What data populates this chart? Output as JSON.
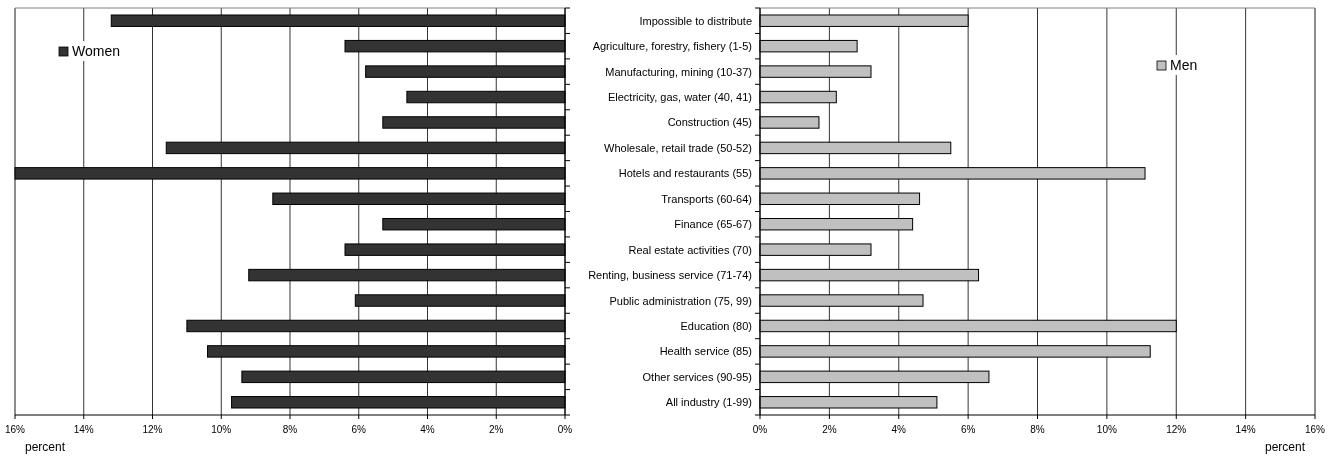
{
  "chart_data": [
    {
      "type": "bar",
      "orientation": "horizontal",
      "xlabel": "percent",
      "categories": [
        null,
        null,
        null,
        null,
        null,
        null,
        null,
        null,
        null,
        null,
        null,
        null,
        null,
        null,
        null,
        null
      ],
      "series": [
        {
          "name": "Women",
          "color": "#333333",
          "values": [
            13.2,
            6.4,
            5.8,
            4.6,
            5.3,
            11.6,
            16.0,
            8.5,
            5.3,
            6.4,
            9.2,
            6.1,
            11.0,
            10.4,
            9.4,
            9.7
          ]
        }
      ],
      "xlim": [
        16,
        0
      ],
      "xticks": [
        {
          "value": 16,
          "label": "16%"
        },
        {
          "value": 14,
          "label": "14%"
        },
        {
          "value": 12,
          "label": "12%"
        },
        {
          "value": 10,
          "label": "10%"
        },
        {
          "value": 8,
          "label": "8%"
        },
        {
          "value": 6,
          "label": "6%"
        },
        {
          "value": 4,
          "label": "4%"
        },
        {
          "value": 2,
          "label": "2%"
        },
        {
          "value": 0,
          "label": "0%"
        }
      ],
      "grid": "x",
      "legend": "top left",
      "tick_labels": "x"
    },
    {
      "type": "bar",
      "orientation": "horizontal",
      "xlabel": "percent",
      "categories": [
        "Impossible to distribute",
        "Agriculture, forestry, fishery (1-5)",
        "Manufacturing, mining (10-37)",
        "Electricity, gas, water (40, 41)",
        "Construction (45)",
        "Wholesale, retail trade (50-52)",
        "Hotels and restaurants (55)",
        "Transports (60-64)",
        "Finance (65-67)",
        "Real estate activities (70)",
        "Renting, business service (71-74)",
        "Public administration (75, 99)",
        "Education (80)",
        "Health service (85)",
        "Other services (90-95)",
        "All industry (1-99)"
      ],
      "series": [
        {
          "name": "Men",
          "color": "#c0c0c0",
          "values": [
            6.0,
            2.8,
            3.2,
            2.2,
            1.7,
            5.5,
            11.1,
            4.6,
            4.4,
            3.2,
            6.3,
            4.7,
            12.0,
            11.25,
            6.6,
            5.1
          ]
        }
      ],
      "xlim": [
        0,
        16
      ],
      "xticks": [
        {
          "value": 0,
          "label": "0%"
        },
        {
          "value": 2,
          "label": "2%"
        },
        {
          "value": 4,
          "label": "4%"
        },
        {
          "value": 6,
          "label": "6%"
        },
        {
          "value": 8,
          "label": "8%"
        },
        {
          "value": 10,
          "label": "10%"
        },
        {
          "value": 12,
          "label": "12%"
        },
        {
          "value": 14,
          "label": "14%"
        },
        {
          "value": 16,
          "label": "16%"
        }
      ],
      "grid": "x",
      "legend": "top right"
    }
  ]
}
